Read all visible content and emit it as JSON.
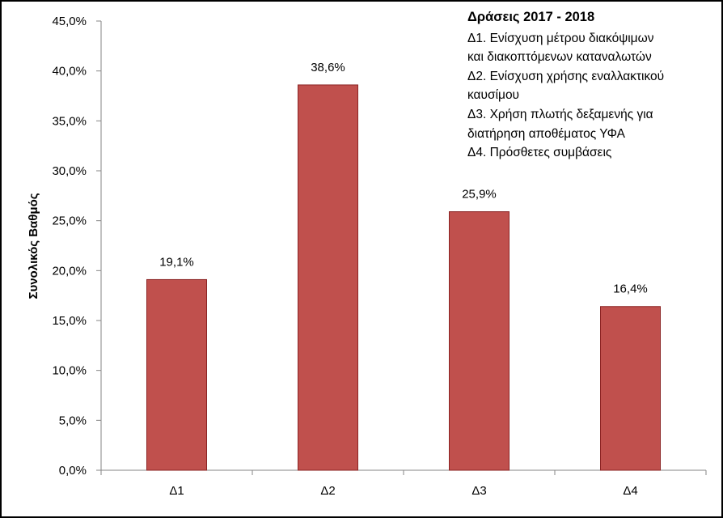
{
  "chart_data": {
    "type": "bar",
    "categories": [
      "Δ1",
      "Δ2",
      "Δ3",
      "Δ4"
    ],
    "values": [
      19.1,
      38.6,
      25.9,
      16.4
    ],
    "value_labels": [
      "19,1%",
      "38,6%",
      "25,9%",
      "16,4%"
    ],
    "ylabel": "Συνολικός Βαθμός",
    "ylim": [
      0,
      45
    ],
    "ytick_values": [
      0,
      5,
      10,
      15,
      20,
      25,
      30,
      35,
      40,
      45
    ],
    "ytick_labels": [
      "0,0%",
      "5,0%",
      "10,0%",
      "15,0%",
      "20,0%",
      "25,0%",
      "30,0%",
      "35,0%",
      "40,0%",
      "45,0%"
    ],
    "bar_color": "#c0504d",
    "bar_edge_color": "#8b2323",
    "grid": false,
    "legend": {
      "placement": "top-right",
      "title": "Δράσεις 2017 - 2018",
      "lines": [
        "Δ1. Ενίσχυση μέτρου διακόψιμων",
        "και διακοπτόμενων καταναλωτών",
        "Δ2. Ενίσχυση χρήσης εναλλακτικού",
        "καυσίμου",
        "Δ3. Χρήση πλωτής δεξαμενής για",
        "διατήρηση αποθέματος ΥΦΑ",
        "Δ4. Πρόσθετες συμβάσεις"
      ]
    }
  }
}
